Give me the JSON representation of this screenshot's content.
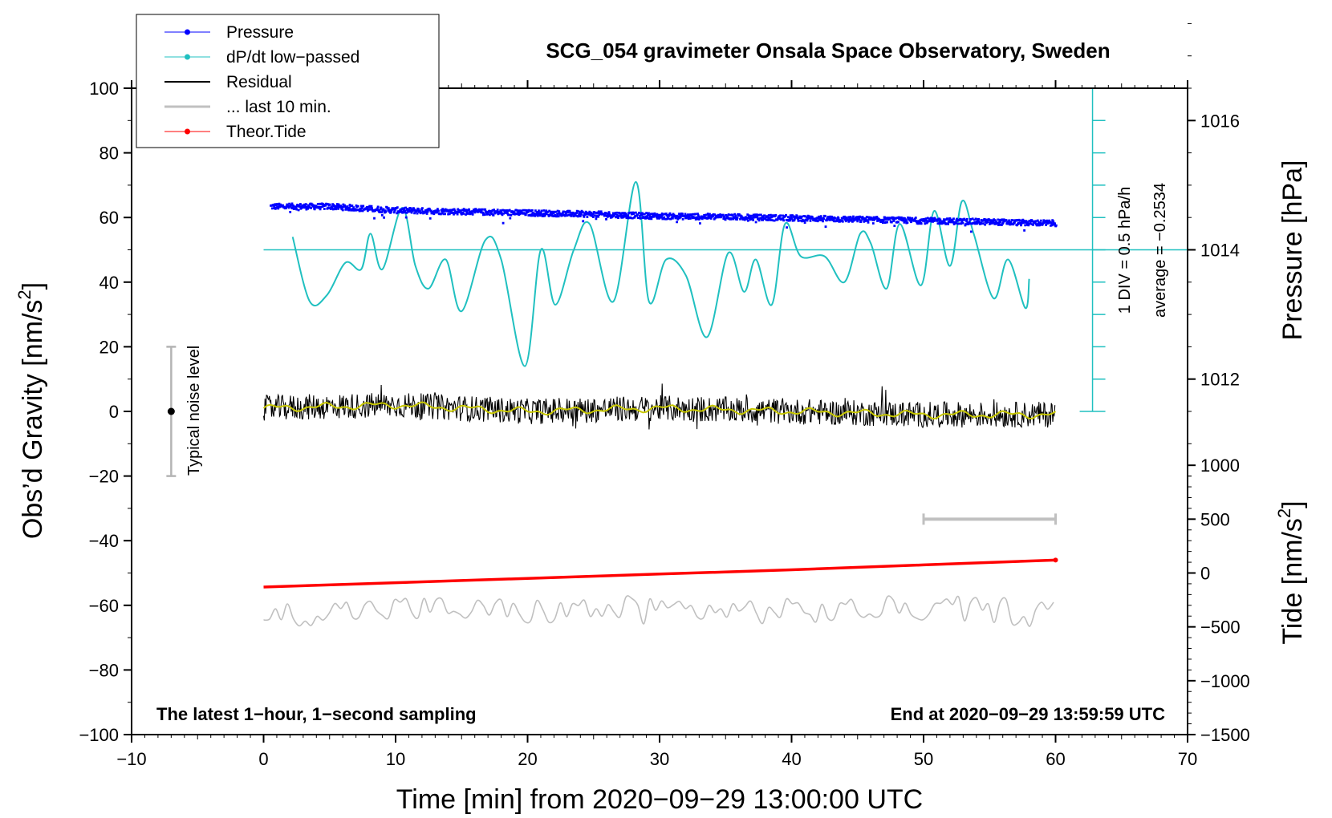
{
  "colors": {
    "pressure": "#0000ff",
    "dpdt": "#20c0c0",
    "residual": "#000000",
    "residual_smooth": "#c8c800",
    "last10": "#c0c0c0",
    "tide": "#ff0000"
  },
  "chart_data": {
    "type": "line",
    "title": "SCG_054 gravimeter Onsala Space Observatory, Sweden",
    "xlabel": "Time [min] from 2020−09−29 13:00:00 UTC",
    "ylabel_main": "Obs’d Gravity [nm/s",
    "ylabel_main_sup": "2",
    "ylabel_main_end": "]",
    "ylabel_pressure": "Pressure [hPa]",
    "ylabel_tide": "Tide [nm/s",
    "ylabel_tide_sup": "2",
    "ylabel_tide_end": "]",
    "xlim": [
      -10,
      70
    ],
    "ylim": [
      -100,
      100
    ],
    "x_ticks": [
      -10,
      0,
      10,
      20,
      30,
      40,
      50,
      60,
      70
    ],
    "x_tick_labels": [
      "−10",
      "0",
      "10",
      "20",
      "30",
      "40",
      "50",
      "60",
      "70"
    ],
    "y_ticks": [
      -100,
      -80,
      -60,
      -40,
      -20,
      0,
      20,
      40,
      60,
      80,
      100
    ],
    "y_tick_labels": [
      "−100",
      "−80",
      "−60",
      "−40",
      "−20",
      "0",
      "20",
      "40",
      "60",
      "80",
      "100"
    ],
    "pressure_axis": {
      "ticks": [
        1012,
        1014,
        1016
      ],
      "tick_labels": [
        "1012",
        "1014",
        "1016"
      ],
      "anchor": {
        "value": 1014,
        "gravity_equiv": 50
      },
      "scale_gravity_per_hpa": 20
    },
    "tide_axis": {
      "ticks": [
        -1500,
        -1000,
        -500,
        0,
        500,
        1000
      ],
      "tick_labels": [
        "−1500",
        "−1000",
        "−500",
        "0",
        "500",
        "1000"
      ],
      "anchor": {
        "value": 0,
        "gravity_equiv": -50
      },
      "scale_gravity_per_unit": 0.03333
    },
    "dpdt_scale": {
      "label_div": "1 DIV = 0.5 hPa/h",
      "label_avg": "average = −0.2534",
      "baseline_gravity": 50,
      "x_position": 62.8,
      "divisions_gravity": [
        0,
        10,
        20,
        30,
        40,
        50,
        60,
        70,
        80,
        90,
        100
      ]
    },
    "noise_bar": {
      "label": "Typical noise level",
      "x": -7,
      "center": 0,
      "range": [
        -20,
        20
      ]
    },
    "last10_bar": {
      "x_range": [
        50,
        60
      ],
      "tide_value": 500
    },
    "annotations": {
      "left": "The latest 1−hour, 1−second sampling",
      "right": "End at 2020−09−29 13:59:59 UTC"
    },
    "legend": [
      {
        "label": "Pressure",
        "style": "line-dot",
        "color_key": "pressure"
      },
      {
        "label": "dP/dt low−passed",
        "style": "line-dot",
        "color_key": "dpdt"
      },
      {
        "label": "Residual",
        "style": "line",
        "color_key": "residual"
      },
      {
        "label": "... last 10 min.",
        "style": "line-thick",
        "color_key": "last10"
      },
      {
        "label": "Theor.Tide",
        "style": "line-dot",
        "color_key": "tide"
      }
    ],
    "series": [
      {
        "name": "Pressure",
        "unit": "hPa",
        "x": [
          0.5,
          5,
          10,
          15,
          20,
          25,
          30,
          35,
          40,
          45,
          50,
          55,
          60
        ],
        "values": [
          1014.68,
          1014.68,
          1014.62,
          1014.6,
          1014.58,
          1014.56,
          1014.53,
          1014.52,
          1014.5,
          1014.48,
          1014.46,
          1014.44,
          1014.42
        ]
      },
      {
        "name": "dP/dt low−passed",
        "unit": "gravity-equivalent",
        "x": [
          2.2,
          3.5,
          4.8,
          6.2,
          7.4,
          8.1,
          9.0,
          10.5,
          11.5,
          12.5,
          13.8,
          15.0,
          16.8,
          18.0,
          19.8,
          21.0,
          22.1,
          23.5,
          24.7,
          26.5,
          28.2,
          29.2,
          30.5,
          32.0,
          33.6,
          35.2,
          36.4,
          37.3,
          38.5,
          39.5,
          40.7,
          42.5,
          44.0,
          45.2,
          46.0,
          47.2,
          48.2,
          49.8,
          50.8,
          52.0,
          52.9,
          53.8,
          55.3,
          56.4,
          57.7,
          58.0
        ],
        "values": [
          54,
          34,
          36,
          46,
          44,
          55,
          44,
          63,
          45,
          38,
          47,
          31,
          53,
          47,
          14,
          50,
          33,
          50,
          58,
          34,
          71,
          34,
          47,
          42,
          23,
          49,
          37,
          47,
          33,
          58,
          48,
          48,
          40,
          55,
          52,
          38,
          58,
          39,
          62,
          45,
          65,
          55,
          35,
          47,
          32,
          41
        ]
      },
      {
        "name": "Residual",
        "unit": "nm/s2",
        "x": [
          0,
          10,
          20,
          30,
          40,
          50,
          60
        ],
        "values": [
          1,
          2,
          0,
          1,
          0,
          -1,
          -1
        ],
        "noise_amplitude": 4
      },
      {
        "name": "... last 10 min.",
        "unit": "offset copy",
        "x": [
          0,
          10,
          20,
          30,
          40,
          50,
          60
        ],
        "values": [
          -63,
          -61,
          -62,
          -61,
          -62,
          -61,
          -62
        ],
        "noise_amplitude": 4
      },
      {
        "name": "Theor.Tide",
        "unit": "nm/s2",
        "x": [
          0,
          10,
          20,
          30,
          40,
          50,
          60
        ],
        "values": [
          -130,
          -90,
          -50,
          -10,
          30,
          75,
          120
        ]
      }
    ]
  }
}
